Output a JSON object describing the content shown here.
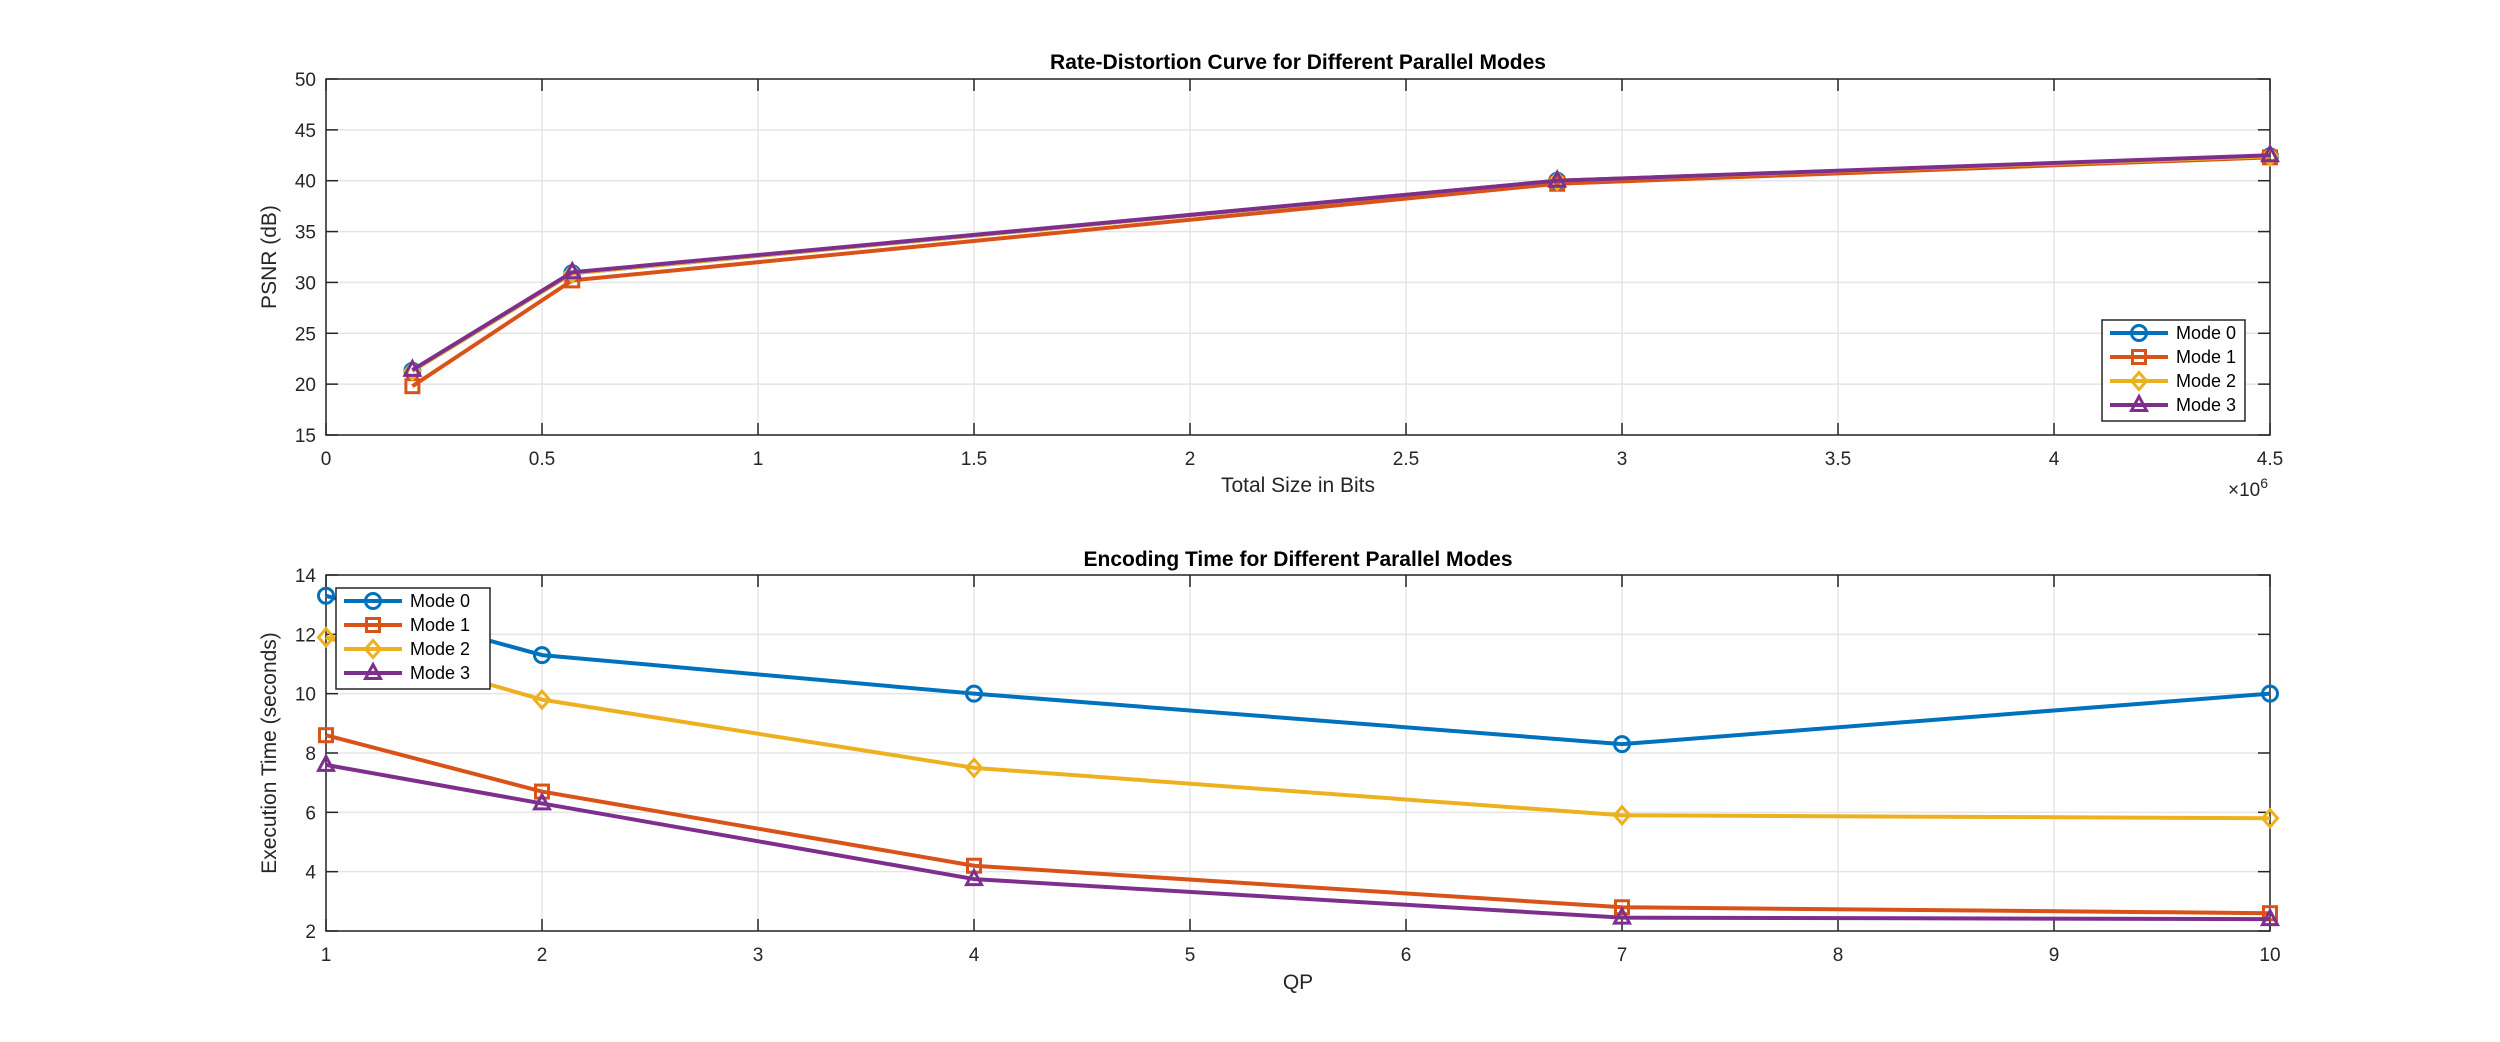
{
  "colors": {
    "Mode 0": "#0072BD",
    "Mode 1": "#D95319",
    "Mode 2": "#EDB120",
    "Mode 3": "#7E2F8E",
    "axis": "#262626",
    "grid": "#e5e5e5"
  },
  "chart_data": [
    {
      "type": "line",
      "title": "Rate-Distortion Curve for Different Parallel Modes",
      "xlabel": "Total Size in Bits",
      "ylabel": "PSNR (dB)",
      "xlim": [
        0,
        4.5
      ],
      "ylim": [
        15,
        50
      ],
      "x_exponent_label": "×10",
      "x_exponent_power": "6",
      "xticks": [
        "0",
        "0.5",
        "1",
        "1.5",
        "2",
        "2.5",
        "3",
        "3.5",
        "4",
        "4.5"
      ],
      "yticks": [
        "15",
        "20",
        "25",
        "30",
        "35",
        "40",
        "45",
        "50"
      ],
      "grid": true,
      "legend_position": "lower-right",
      "series": [
        {
          "name": "Mode 0",
          "marker": "circle",
          "x": [
            0.2,
            0.57,
            2.85,
            4.5
          ],
          "y": [
            21.3,
            30.9,
            40.0,
            42.4
          ]
        },
        {
          "name": "Mode 1",
          "marker": "square",
          "x": [
            0.2,
            0.57,
            2.85,
            4.5
          ],
          "y": [
            19.8,
            30.2,
            39.7,
            42.3
          ]
        },
        {
          "name": "Mode 2",
          "marker": "diamond",
          "x": [
            0.2,
            0.57,
            2.85,
            4.5
          ],
          "y": [
            21.3,
            30.9,
            40.0,
            42.4
          ]
        },
        {
          "name": "Mode 3",
          "marker": "triangle",
          "x": [
            0.2,
            0.57,
            2.85,
            4.5
          ],
          "y": [
            21.4,
            31.0,
            40.0,
            42.5
          ]
        }
      ]
    },
    {
      "type": "line",
      "title": "Encoding Time for Different Parallel Modes",
      "xlabel": "QP",
      "ylabel": "Execution Time (seconds)",
      "xlim": [
        1,
        10
      ],
      "ylim": [
        2,
        14
      ],
      "xticks": [
        "1",
        "2",
        "3",
        "4",
        "5",
        "6",
        "7",
        "8",
        "9",
        "10"
      ],
      "yticks": [
        "2",
        "4",
        "6",
        "8",
        "10",
        "12",
        "14"
      ],
      "grid": true,
      "legend_position": "upper-left",
      "series": [
        {
          "name": "Mode 0",
          "marker": "circle",
          "x": [
            1,
            2,
            4,
            7,
            10
          ],
          "y": [
            13.3,
            11.3,
            10.0,
            8.3,
            10.0
          ]
        },
        {
          "name": "Mode 1",
          "marker": "square",
          "x": [
            1,
            2,
            4,
            7,
            10
          ],
          "y": [
            8.6,
            6.7,
            4.2,
            2.8,
            2.6
          ]
        },
        {
          "name": "Mode 2",
          "marker": "diamond",
          "x": [
            1,
            2,
            4,
            7,
            10
          ],
          "y": [
            11.9,
            9.8,
            7.5,
            5.9,
            5.8
          ]
        },
        {
          "name": "Mode 3",
          "marker": "triangle",
          "x": [
            1,
            2,
            4,
            7,
            10
          ],
          "y": [
            7.6,
            6.3,
            3.75,
            2.45,
            2.4
          ]
        }
      ]
    }
  ]
}
